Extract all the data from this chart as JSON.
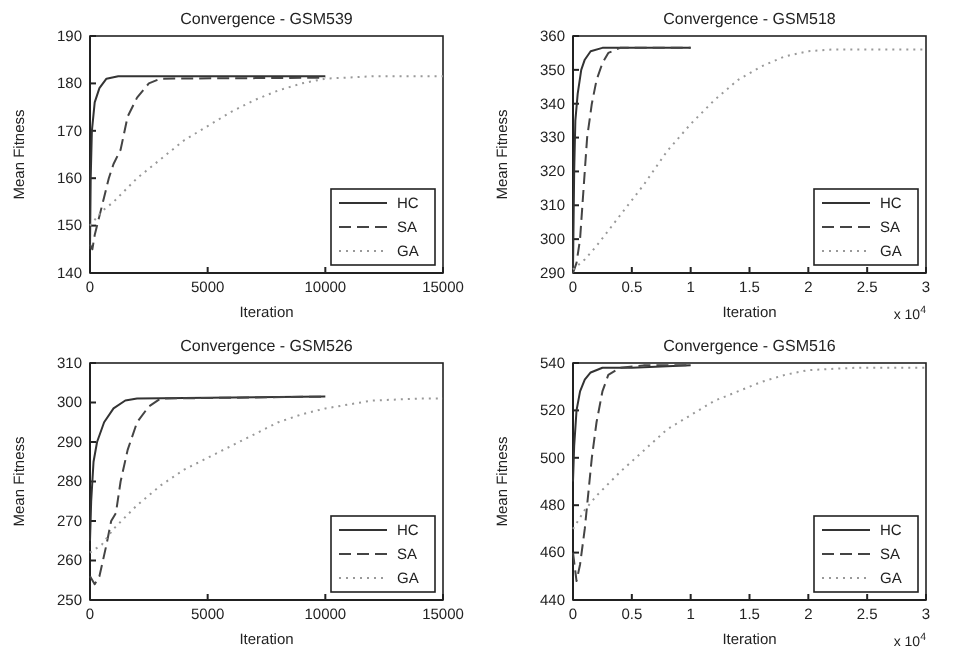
{
  "chart_data": [
    {
      "type": "line",
      "title": "Convergence - GSM539",
      "xlabel": "Iteration",
      "ylabel": "Mean Fitness",
      "xlim": [
        0,
        15000
      ],
      "ylim": [
        140,
        190
      ],
      "xticks": [
        0,
        5000,
        10000,
        15000
      ],
      "yticks": [
        140,
        150,
        160,
        170,
        180,
        190
      ],
      "grid": false,
      "legend": "bottom right",
      "series": [
        {
          "name": "HC",
          "color": "#333333",
          "line_style": "solid",
          "x": [
            0,
            30,
            80,
            200,
            400,
            700,
            1200,
            10000
          ],
          "values": [
            145,
            160,
            170,
            176,
            179,
            181,
            181.5,
            181.5
          ]
        },
        {
          "name": "SA",
          "color": "#444444",
          "line_style": "dashed",
          "x": [
            0,
            100,
            200,
            400,
            600,
            800,
            1000,
            1300,
            1600,
            2000,
            2500,
            3000,
            10000
          ],
          "values": [
            146,
            145,
            148,
            152,
            156,
            160,
            163,
            166,
            173,
            177,
            180,
            181,
            181.2
          ]
        },
        {
          "name": "GA",
          "color": "#999999",
          "line_style": "dotted",
          "x": [
            0,
            500,
            1000,
            2000,
            3000,
            4000,
            5000,
            6000,
            7000,
            8000,
            9000,
            10000,
            12000,
            15000
          ],
          "values": [
            150,
            153,
            155,
            160,
            164,
            168,
            171,
            174,
            176.5,
            178.5,
            180,
            181,
            181.5,
            181.5
          ]
        }
      ]
    },
    {
      "type": "line",
      "title": "Convergence - GSM518",
      "xlabel": "Iteration",
      "ylabel": "Mean Fitness",
      "annotations": [
        "x 10$^{4}$"
      ],
      "xlim": [
        0,
        3
      ],
      "ylim": [
        290,
        360
      ],
      "xticks": [
        0,
        0.5,
        1,
        1.5,
        2,
        2.5,
        3
      ],
      "yticks": [
        290,
        300,
        310,
        320,
        330,
        340,
        350,
        360
      ],
      "grid": false,
      "legend": "bottom right",
      "series": [
        {
          "name": "HC",
          "color": "#333333",
          "line_style": "solid",
          "x": [
            0,
            0.01,
            0.02,
            0.04,
            0.07,
            0.1,
            0.15,
            0.25,
            1
          ],
          "values": [
            291,
            320,
            335,
            343,
            350,
            353,
            355.5,
            356.5,
            356.5
          ]
        },
        {
          "name": "SA",
          "color": "#444444",
          "line_style": "dashed",
          "x": [
            0,
            0.03,
            0.06,
            0.09,
            0.12,
            0.16,
            0.2,
            0.25,
            0.3,
            0.4,
            1
          ],
          "values": [
            290,
            293,
            300,
            315,
            330,
            340,
            347,
            352,
            355,
            356.5,
            356.5
          ]
        },
        {
          "name": "GA",
          "color": "#999999",
          "line_style": "dotted",
          "x": [
            0,
            0.1,
            0.2,
            0.4,
            0.6,
            0.8,
            1,
            1.2,
            1.4,
            1.6,
            1.8,
            2,
            2.2,
            3
          ],
          "values": [
            291,
            294,
            298,
            307,
            316,
            326,
            334,
            341,
            347,
            351,
            354,
            355.5,
            356,
            356
          ]
        }
      ]
    },
    {
      "type": "line",
      "title": "Convergence - GSM526",
      "xlabel": "Iteration",
      "ylabel": "Mean Fitness",
      "xlim": [
        0,
        15000
      ],
      "ylim": [
        250,
        310
      ],
      "xticks": [
        0,
        5000,
        10000,
        15000
      ],
      "yticks": [
        250,
        260,
        270,
        280,
        290,
        300,
        310
      ],
      "grid": false,
      "legend": "bottom right",
      "series": [
        {
          "name": "HC",
          "color": "#333333",
          "line_style": "solid",
          "x": [
            0,
            50,
            150,
            300,
            600,
            1000,
            1500,
            2000,
            10000
          ],
          "values": [
            265,
            275,
            285,
            290,
            295,
            298.5,
            300.5,
            301,
            301.5
          ]
        },
        {
          "name": "SA",
          "color": "#444444",
          "line_style": "dashed",
          "x": [
            0,
            200,
            400,
            700,
            900,
            1100,
            1300,
            1600,
            2000,
            2500,
            3000,
            10000
          ],
          "values": [
            256,
            254,
            256,
            264,
            270,
            272,
            280,
            288,
            295,
            299,
            301,
            301.5
          ]
        },
        {
          "name": "GA",
          "color": "#999999",
          "line_style": "dotted",
          "x": [
            0,
            500,
            1000,
            2000,
            3000,
            4000,
            5000,
            6000,
            7000,
            8000,
            9000,
            10000,
            12000,
            14000,
            15000
          ],
          "values": [
            262,
            264,
            268,
            274,
            279,
            283,
            286,
            289,
            292,
            295,
            297,
            298.5,
            300.5,
            301,
            301
          ]
        }
      ]
    },
    {
      "type": "line",
      "title": "Convergence - GSM516",
      "xlabel": "Iteration",
      "ylabel": "Mean Fitness",
      "annotations": [
        "x 10$^{4}$"
      ],
      "xlim": [
        0,
        3
      ],
      "ylim": [
        440,
        540
      ],
      "xticks": [
        0,
        0.5,
        1,
        1.5,
        2,
        2.5,
        3
      ],
      "yticks": [
        440,
        460,
        480,
        500,
        520,
        540
      ],
      "grid": false,
      "legend": "bottom right",
      "series": [
        {
          "name": "HC",
          "color": "#333333",
          "line_style": "solid",
          "x": [
            0,
            0.01,
            0.03,
            0.06,
            0.1,
            0.15,
            0.25,
            0.5,
            1
          ],
          "values": [
            490,
            505,
            520,
            528,
            533,
            536,
            538,
            538,
            539
          ]
        },
        {
          "name": "SA",
          "color": "#444444",
          "line_style": "dashed",
          "x": [
            0,
            0.03,
            0.06,
            0.1,
            0.13,
            0.16,
            0.2,
            0.25,
            0.3,
            0.4,
            0.6,
            1
          ],
          "values": [
            460,
            448,
            455,
            470,
            485,
            500,
            515,
            528,
            535,
            538,
            539,
            539
          ]
        },
        {
          "name": "GA",
          "color": "#999999",
          "line_style": "dotted",
          "x": [
            0,
            0.1,
            0.2,
            0.4,
            0.6,
            0.8,
            1,
            1.2,
            1.4,
            1.6,
            1.8,
            2,
            2.4,
            3
          ],
          "values": [
            470,
            478,
            484,
            494,
            503,
            512,
            518,
            524,
            528,
            532,
            535,
            537,
            538,
            538
          ]
        }
      ]
    }
  ]
}
